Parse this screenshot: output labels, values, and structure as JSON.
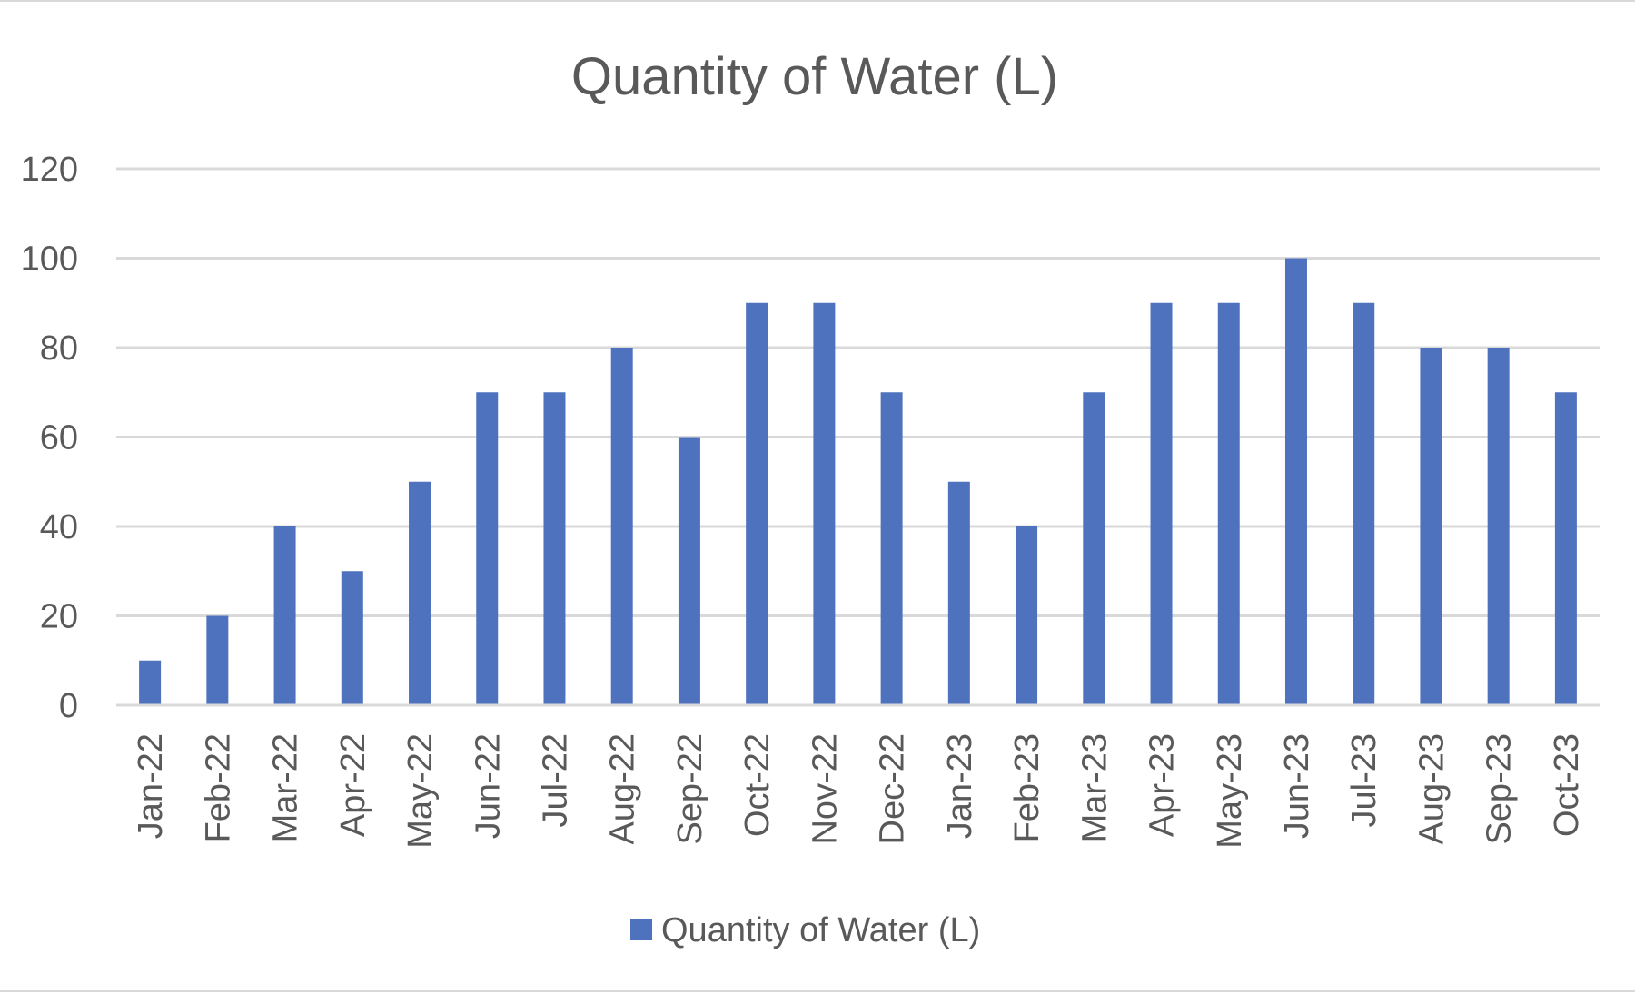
{
  "chart_data": {
    "type": "bar",
    "title": "Quantity of Water (L)",
    "xlabel": "",
    "ylabel": "",
    "categories": [
      "Jan-22",
      "Feb-22",
      "Mar-22",
      "Apr-22",
      "May-22",
      "Jun-22",
      "Jul-22",
      "Aug-22",
      "Sep-22",
      "Oct-22",
      "Nov-22",
      "Dec-22",
      "Jan-23",
      "Feb-23",
      "Mar-23",
      "Apr-23",
      "May-23",
      "Jun-23",
      "Jul-23",
      "Aug-23",
      "Sep-23",
      "Oct-23"
    ],
    "series": [
      {
        "name": "Quantity of Water (L)",
        "color": "#4f72be",
        "values": [
          10,
          20,
          40,
          30,
          50,
          70,
          70,
          80,
          60,
          90,
          90,
          70,
          50,
          40,
          70,
          90,
          90,
          100,
          90,
          80,
          80,
          70
        ]
      }
    ],
    "ylim": [
      0,
      120
    ],
    "yticks": [
      "0",
      "20",
      "40",
      "60",
      "80",
      "100",
      "120"
    ],
    "grid": true,
    "legend_position": "bottom"
  }
}
